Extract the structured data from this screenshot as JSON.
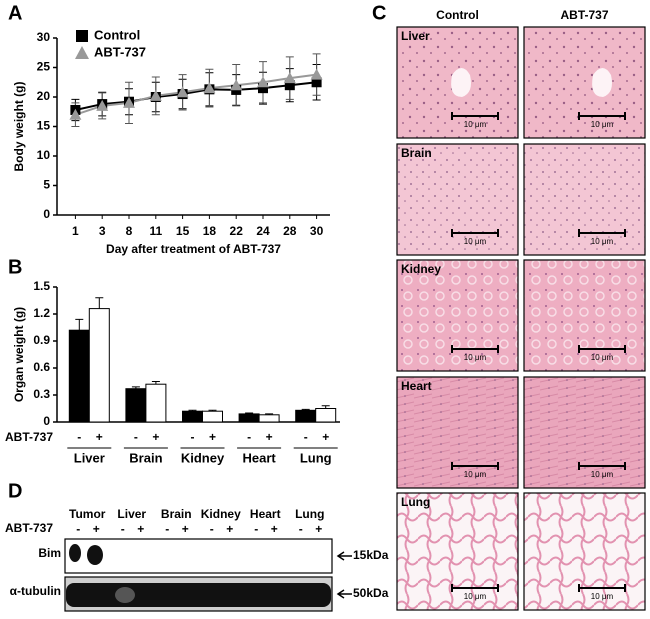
{
  "panels": {
    "a": "A",
    "b": "B",
    "c": "C",
    "d": "D"
  },
  "chart_data": [
    {
      "type": "line",
      "x_label": "Day after treatment of ABT-737",
      "y_label": "Body weight (g)",
      "categories": [
        1,
        3,
        8,
        11,
        15,
        18,
        22,
        24,
        28,
        30
      ],
      "series": [
        {
          "name": "Control",
          "color": "#000000",
          "marker": "square",
          "values": [
            17.8,
            18.8,
            19.2,
            20.0,
            20.5,
            21.3,
            21.2,
            21.5,
            22.0,
            22.5
          ],
          "errors": [
            1.8,
            2.0,
            2.2,
            2.5,
            2.5,
            2.8,
            2.6,
            2.7,
            2.8,
            3.0
          ]
        },
        {
          "name": "ABT-737",
          "color": "#999999",
          "marker": "triangle",
          "values": [
            17.0,
            18.5,
            19.0,
            20.2,
            20.8,
            21.5,
            22.0,
            22.5,
            23.2,
            23.8
          ],
          "errors": [
            2.0,
            2.2,
            3.5,
            3.2,
            3.0,
            3.2,
            3.5,
            3.5,
            3.6,
            3.5
          ]
        }
      ],
      "ylim": [
        0,
        30
      ],
      "yticks": [
        0,
        5,
        10,
        15,
        20,
        25,
        30
      ],
      "legend": "top-left"
    },
    {
      "type": "bar",
      "y_label": "Organ weight (g)",
      "series_label": "ABT-737",
      "categories": [
        "Liver",
        "Brain",
        "Kidney",
        "Heart",
        "Lung"
      ],
      "series": [
        {
          "name": "-",
          "color": "#000000",
          "values": [
            1.02,
            0.37,
            0.12,
            0.09,
            0.13
          ],
          "errors": [
            0.12,
            0.02,
            0.01,
            0.01,
            0.01
          ]
        },
        {
          "name": "+",
          "color": "#ffffff",
          "values": [
            1.26,
            0.42,
            0.12,
            0.08,
            0.15
          ],
          "errors": [
            0.12,
            0.03,
            0.01,
            0.01,
            0.03
          ]
        }
      ],
      "ylim": [
        0,
        1.5
      ],
      "yticks": [
        0,
        0.3,
        0.6,
        0.9,
        1.2,
        1.5
      ]
    }
  ],
  "histology": {
    "columns": [
      "Control",
      "ABT-737"
    ],
    "rows": [
      "Liver",
      "Brain",
      "Kidney",
      "Heart",
      "Lung"
    ],
    "scale_bar": "10 μm"
  },
  "western": {
    "lanes": [
      "Tumor",
      "Liver",
      "Brain",
      "Kidney",
      "Heart",
      "Lung"
    ],
    "treatment_label": "ABT-737",
    "signs": [
      "-",
      "+"
    ],
    "rows": [
      {
        "label": "Bim",
        "marker": "15kDa"
      },
      {
        "label": "α-tubulin",
        "marker": "50kDa"
      }
    ]
  }
}
